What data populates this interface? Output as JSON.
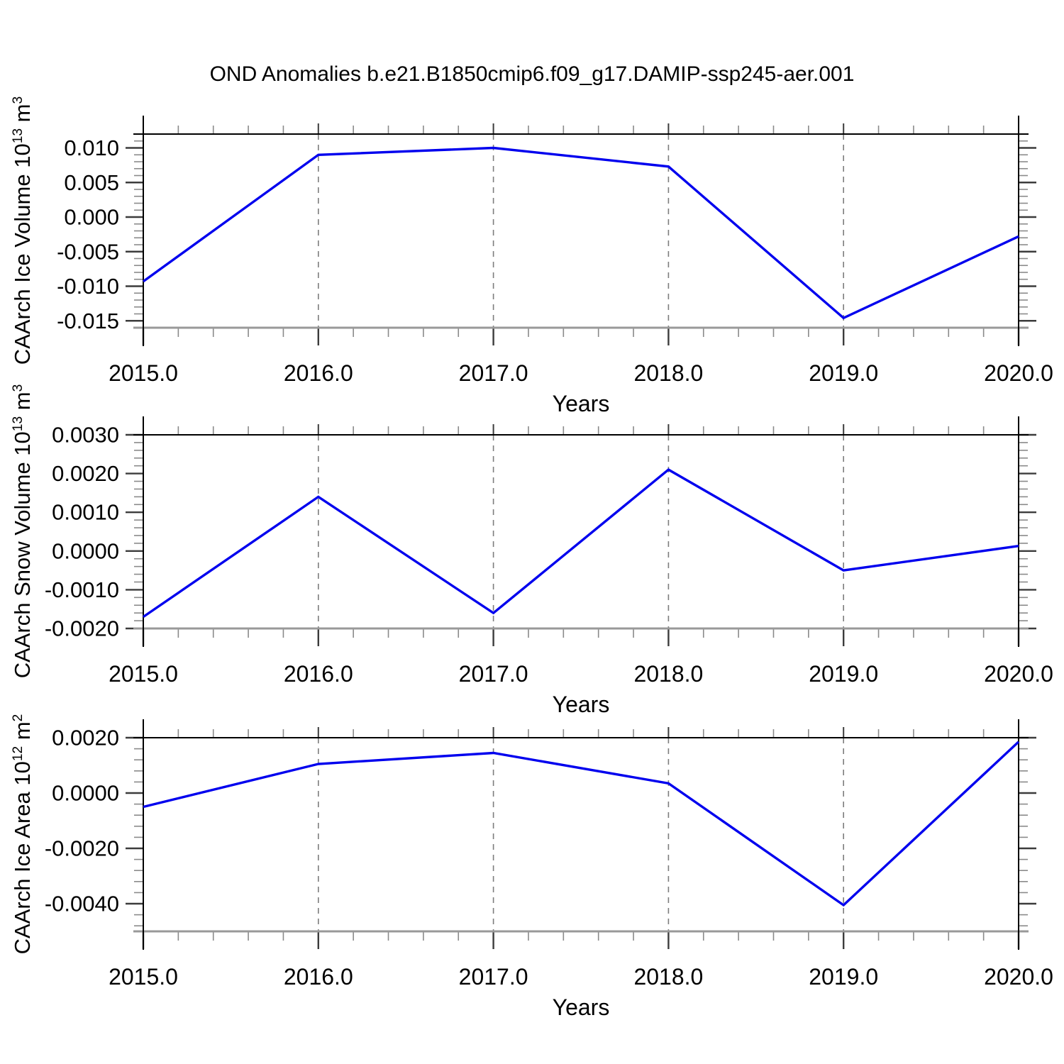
{
  "title": "OND Anomalies b.e21.B1850cmip6.f09_g17.DAMIP-ssp245-aer.001",
  "palette": {
    "line": "#0000ee",
    "gridline": "#7d7d7d",
    "frame": "#000000",
    "frame_bottom": "#999999",
    "tick_major": "#3c3c3c",
    "tick_minor": "#8a8a8a",
    "text": "#000000",
    "background": "#ffffff"
  },
  "chart_data": [
    {
      "id": "ice-volume",
      "type": "line",
      "title": "",
      "xlabel": "Years",
      "ylabel_parts": [
        {
          "text": "CAArch Ice Volume 10"
        },
        {
          "text": "13",
          "sup": true
        },
        {
          "text": " m"
        },
        {
          "text": "3",
          "sup": true
        }
      ],
      "x": [
        2015,
        2016,
        2017,
        2018,
        2019,
        2020
      ],
      "values": [
        -0.0093,
        0.009,
        0.01,
        0.0073,
        -0.0146,
        -0.0028
      ],
      "xlim": [
        2015,
        2020
      ],
      "ylim": [
        -0.016,
        0.012
      ],
      "x_major_ticks": {
        "values": [
          2015,
          2016,
          2017,
          2018,
          2019,
          2020
        ],
        "labels": [
          "2015.0",
          "2016.0",
          "2017.0",
          "2018.0",
          "2019.0",
          "2020.0"
        ]
      },
      "x_minor_step": 0.2,
      "y_major_ticks": {
        "values": [
          0.01,
          0.005,
          0.0,
          -0.005,
          -0.01,
          -0.015
        ],
        "labels": [
          "0.010",
          "0.005",
          "0.000",
          "-0.005",
          "-0.010",
          "-0.015"
        ]
      },
      "y_minor_step": 0.001,
      "x_gridlines": [
        2016,
        2017,
        2018,
        2019
      ],
      "grid": "vertical-dashed",
      "legend": null
    },
    {
      "id": "snow-volume",
      "type": "line",
      "title": "",
      "xlabel": "Years",
      "ylabel_parts": [
        {
          "text": "CAArch Snow Volume 10"
        },
        {
          "text": "13",
          "sup": true
        },
        {
          "text": " m"
        },
        {
          "text": "3",
          "sup": true
        }
      ],
      "x": [
        2015,
        2016,
        2017,
        2018,
        2019,
        2020
      ],
      "values": [
        -0.0017,
        0.0014,
        -0.0016,
        0.0021,
        -0.0005,
        0.00013
      ],
      "xlim": [
        2015,
        2020
      ],
      "ylim": [
        -0.002,
        0.003
      ],
      "x_major_ticks": {
        "values": [
          2015,
          2016,
          2017,
          2018,
          2019,
          2020
        ],
        "labels": [
          "2015.0",
          "2016.0",
          "2017.0",
          "2018.0",
          "2019.0",
          "2020.0"
        ]
      },
      "x_minor_step": 0.2,
      "y_major_ticks": {
        "values": [
          0.003,
          0.002,
          0.001,
          0.0,
          -0.001,
          -0.002
        ],
        "labels": [
          "0.0030",
          "0.0020",
          "0.0010",
          "0.0000",
          "-0.0010",
          "-0.0020"
        ]
      },
      "y_minor_step": 0.0002,
      "x_gridlines": [
        2016,
        2017,
        2018,
        2019
      ],
      "grid": "vertical-dashed",
      "legend": null
    },
    {
      "id": "ice-area",
      "type": "line",
      "title": "",
      "xlabel": "Years",
      "ylabel_parts": [
        {
          "text": "CAArch Ice Area 10"
        },
        {
          "text": "12",
          "sup": true
        },
        {
          "text": " m"
        },
        {
          "text": "2",
          "sup": true
        }
      ],
      "x": [
        2015,
        2016,
        2017,
        2018,
        2019,
        2020
      ],
      "values": [
        -0.0005,
        0.00105,
        0.00145,
        0.00035,
        -0.00405,
        0.00185
      ],
      "xlim": [
        2015,
        2020
      ],
      "ylim": [
        -0.005,
        0.002
      ],
      "x_major_ticks": {
        "values": [
          2015,
          2016,
          2017,
          2018,
          2019,
          2020
        ],
        "labels": [
          "2015.0",
          "2016.0",
          "2017.0",
          "2018.0",
          "2019.0",
          "2020.0"
        ]
      },
      "x_minor_step": 0.2,
      "y_major_ticks": {
        "values": [
          0.002,
          0.0,
          -0.002,
          -0.004
        ],
        "labels": [
          "0.0020",
          "0.0000",
          "-0.0020",
          "-0.0040"
        ]
      },
      "y_minor_step": 0.0004,
      "x_gridlines": [
        2016,
        2017,
        2018,
        2019
      ],
      "grid": "vertical-dashed",
      "legend": null
    }
  ]
}
